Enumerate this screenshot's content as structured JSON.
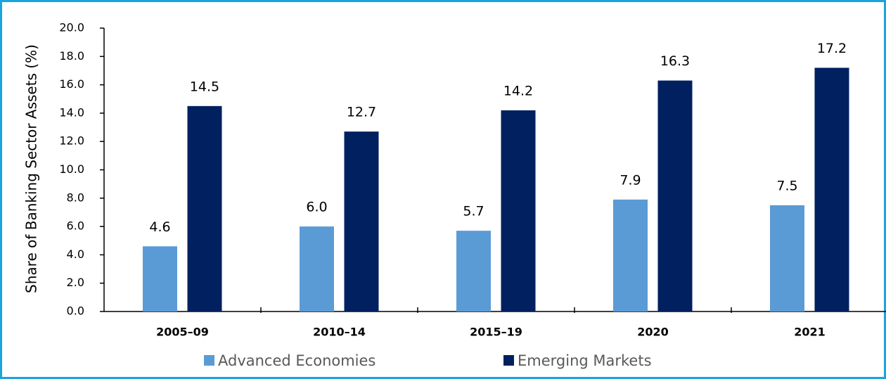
{
  "chart_data": {
    "type": "bar",
    "y_label": "Share of Banking Sector Assets (%)",
    "categories": [
      "2005–09",
      "2010–14",
      "2015–19",
      "2020",
      "2021"
    ],
    "series": [
      {
        "name": "Advanced Economies",
        "color": "#5b9bd5",
        "values": [
          4.6,
          6.0,
          5.7,
          7.9,
          7.5
        ],
        "value_labels": [
          "4.6",
          "6.0",
          "5.7",
          "7.9",
          "7.5"
        ]
      },
      {
        "name": "Emerging Markets",
        "color": "#002060",
        "values": [
          14.5,
          12.7,
          14.2,
          16.3,
          17.2
        ],
        "value_labels": [
          "14.5",
          "12.7",
          "14.2",
          "16.3",
          "17.2"
        ]
      }
    ],
    "ylim": [
      0,
      20
    ],
    "yticks": [
      {
        "value": 0,
        "label": "0.0"
      },
      {
        "value": 2,
        "label": "2.0"
      },
      {
        "value": 4,
        "label": "4.0"
      },
      {
        "value": 6,
        "label": "6.0"
      },
      {
        "value": 8,
        "label": "8.0"
      },
      {
        "value": 10,
        "label": "10.0"
      },
      {
        "value": 12,
        "label": "12.0"
      },
      {
        "value": 14,
        "label": "14.0"
      },
      {
        "value": 16,
        "label": "16.0"
      },
      {
        "value": 18,
        "label": "18.0"
      },
      {
        "value": 20,
        "label": "20.0"
      }
    ],
    "grid": false,
    "legend": "bottom"
  }
}
